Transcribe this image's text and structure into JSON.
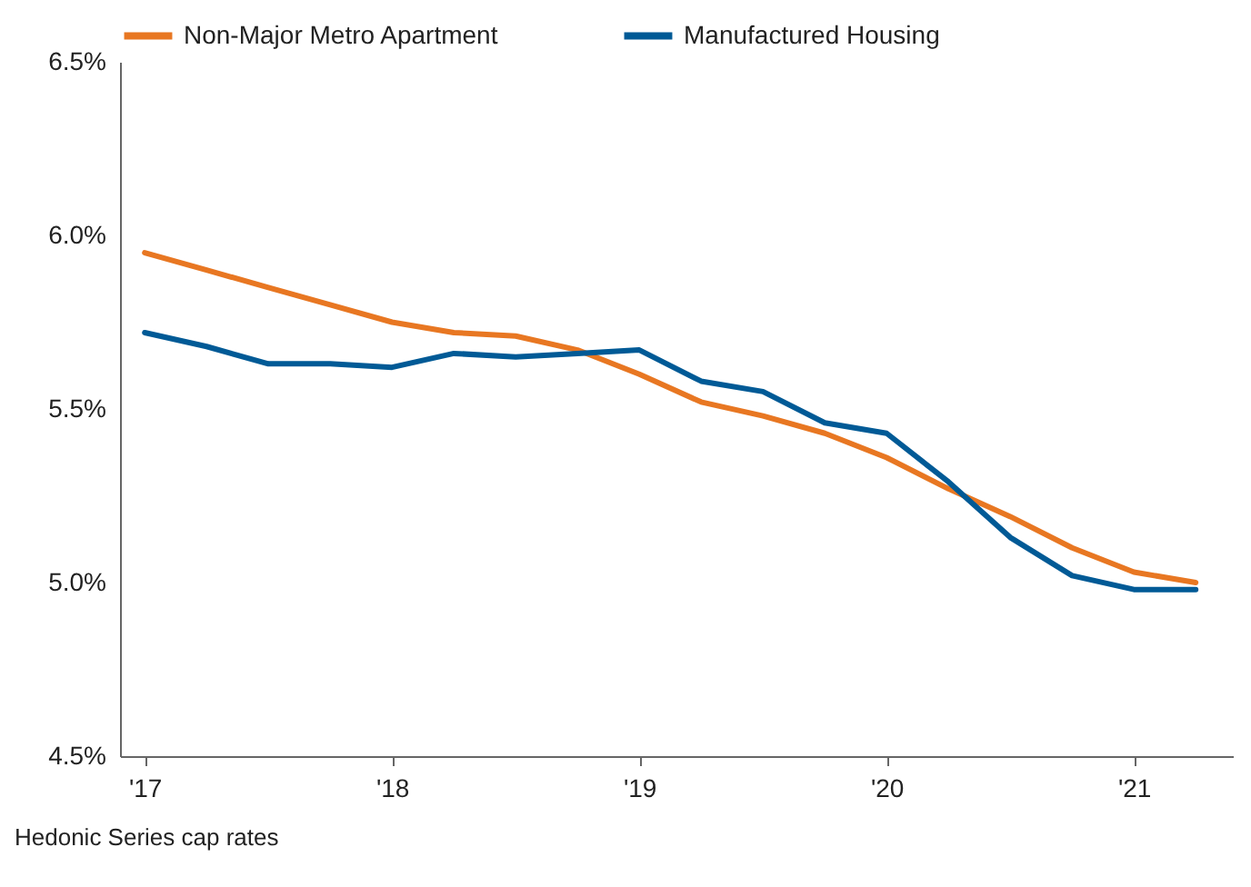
{
  "chart_data": {
    "type": "line",
    "x": [
      2017,
      2017.25,
      2017.5,
      2017.75,
      2018,
      2018.25,
      2018.5,
      2018.75,
      2019,
      2019.25,
      2019.5,
      2019.75,
      2020,
      2020.25,
      2020.5,
      2020.75,
      2021,
      2021.25
    ],
    "series": [
      {
        "name": "Non-Major Metro Apartment",
        "color": "#e87722",
        "values": [
          5.95,
          5.9,
          5.85,
          5.8,
          5.75,
          5.72,
          5.71,
          5.67,
          5.6,
          5.52,
          5.48,
          5.43,
          5.36,
          5.27,
          5.19,
          5.1,
          5.03,
          5.0
        ]
      },
      {
        "name": "Manufactured Housing",
        "color": "#005a96",
        "values": [
          5.72,
          5.68,
          5.63,
          5.63,
          5.62,
          5.66,
          5.65,
          5.66,
          5.67,
          5.58,
          5.55,
          5.46,
          5.43,
          5.29,
          5.13,
          5.02,
          4.98,
          4.98
        ]
      }
    ],
    "xlim": [
      2016.9,
      2021.4
    ],
    "xticks": [
      {
        "value": 2017,
        "label": "'17"
      },
      {
        "value": 2018,
        "label": "'18"
      },
      {
        "value": 2019,
        "label": "'19"
      },
      {
        "value": 2020,
        "label": "'20"
      },
      {
        "value": 2021,
        "label": "'21"
      }
    ],
    "ylim": [
      4.5,
      6.5
    ],
    "yticks": [
      {
        "value": 4.5,
        "label": "4.5%"
      },
      {
        "value": 5.0,
        "label": "5.0%"
      },
      {
        "value": 5.5,
        "label": "5.5%"
      },
      {
        "value": 6.0,
        "label": "6.0%"
      },
      {
        "value": 6.5,
        "label": "6.5%"
      }
    ],
    "legend": "top",
    "grid": false,
    "marker": "none",
    "line_style": "solid",
    "annotations": [
      "Hedonic Series cap rates"
    ]
  }
}
